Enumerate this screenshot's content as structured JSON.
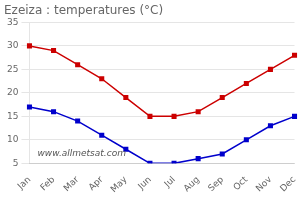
{
  "chart_data": {
    "type": "line",
    "title": "Ezeiza : temperatures (°C)",
    "categories": [
      "Jan",
      "Feb",
      "Mar",
      "Apr",
      "May",
      "Jun",
      "Jul",
      "Aug",
      "Sep",
      "Oct",
      "Nov",
      "Dec"
    ],
    "series": [
      {
        "color": "#cc0000",
        "marker": "square",
        "values": [
          30,
          29,
          26,
          23,
          19,
          15,
          15,
          16,
          19,
          22,
          25,
          28
        ]
      },
      {
        "color": "#0000cc",
        "marker": "square",
        "values": [
          17,
          16,
          14,
          11,
          8,
          5,
          5,
          6,
          7,
          10,
          13,
          15
        ]
      }
    ],
    "ylim": [
      5,
      35
    ],
    "yticks": [
      5,
      10,
      15,
      20,
      25,
      30,
      35
    ],
    "grid": true,
    "annotation": "www.allmetsat.com"
  }
}
